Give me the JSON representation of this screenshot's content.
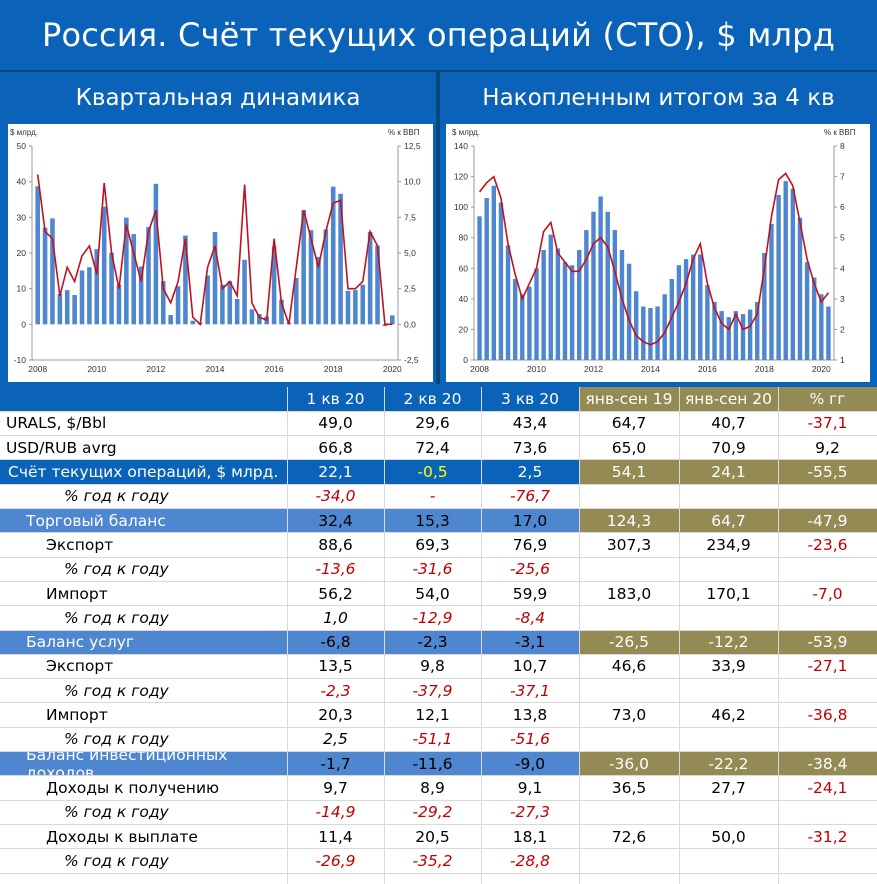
{
  "page": {
    "title": "Россия. Счёт текущих операций (СТО), $ млрд",
    "left_subtitle": "Квартальная динамика",
    "right_subtitle": "Накопленным итогом за 4 кв"
  },
  "colors": {
    "bar": "#4f86d0",
    "line": "#c0111f",
    "header_blue": "#0a63b8",
    "olive": "#948a54",
    "section_blue": "#4f86d0"
  },
  "chart_data": [
    {
      "type": "bar",
      "left_unit": "$ млрд.",
      "right_unit": "% к ВВП",
      "y_ticks": [
        "50",
        "40",
        "30",
        "20",
        "10",
        "0",
        "-10"
      ],
      "y2_ticks": [
        "12,5",
        "10,0",
        "7,5",
        "5,0",
        "2,5",
        "0,0",
        "-2,5"
      ],
      "x_ticks": [
        "2008",
        "2010",
        "2012",
        "2014",
        "2016",
        "2018",
        "2020"
      ],
      "ylim": [
        -10,
        50
      ],
      "y2lim": [
        -2.5,
        12.5
      ],
      "series": [
        {
          "values": [
            38.7,
            27.1,
            29.7,
            8.5,
            9.6,
            8.2,
            15.1,
            16.0,
            21.1,
            33.0,
            20.1,
            11.1,
            29.9,
            25.3,
            16.2,
            27.3,
            39.4,
            12.1,
            2.6,
            10.7,
            24.9,
            1.0,
            0.5,
            13.7,
            25.9,
            11.0,
            12.1,
            7.1,
            18.1,
            4.2,
            2.9,
            2.2,
            21.8,
            6.9,
            0.5,
            13.0,
            32.0,
            26.4,
            18.9,
            26.6,
            38.6,
            36.6,
            9.4,
            9.6,
            11.1,
            25.9,
            22.1,
            -0.5,
            2.5
          ]
        },
        {
          "values": [
            10.5,
            6.5,
            6.0,
            2.0,
            4.0,
            3.0,
            4.8,
            5.5,
            3.5,
            9.9,
            5.0,
            2.5,
            7.0,
            5.0,
            3.0,
            6.5,
            8.0,
            2.5,
            1.5,
            3.0,
            6.0,
            0.5,
            0.0,
            4.0,
            5.5,
            2.5,
            3.0,
            2.0,
            9.8,
            1.5,
            0.5,
            0.3,
            6.0,
            1.5,
            0.0,
            4.0,
            8.0,
            6.0,
            4.0,
            6.5,
            8.5,
            8.7,
            2.5,
            2.5,
            3.0,
            6.5,
            5.5,
            0.0,
            0.0
          ]
        }
      ]
    },
    {
      "type": "bar",
      "left_unit": "$ млрд.",
      "right_unit": "% к ВВП",
      "y_ticks": [
        "140",
        "120",
        "100",
        "80",
        "60",
        "40",
        "20",
        "0"
      ],
      "y2_ticks": [
        "8",
        "7",
        "6",
        "5",
        "4",
        "3",
        "2",
        "1"
      ],
      "x_ticks": [
        "2008",
        "2010",
        "2012",
        "2014",
        "2016",
        "2018",
        "2020"
      ],
      "ylim": [
        0,
        140
      ],
      "y2lim": [
        1,
        8
      ],
      "series": [
        {
          "values": [
            94,
            106,
            114,
            103,
            75,
            53,
            43,
            48,
            60,
            72,
            82,
            73,
            64,
            62,
            72,
            85,
            97,
            107,
            97,
            85,
            72,
            63,
            45,
            35,
            34,
            35,
            43,
            53,
            62,
            66,
            69,
            69,
            49,
            38,
            32,
            28,
            32,
            30,
            33,
            38,
            70,
            89,
            108,
            117,
            112,
            93,
            64,
            54,
            43,
            35
          ]
        },
        {
          "values": [
            6.5,
            6.8,
            7.0,
            6.3,
            4.8,
            3.8,
            3.0,
            3.5,
            4.0,
            5.2,
            5.5,
            4.5,
            4.2,
            3.9,
            3.9,
            4.3,
            4.8,
            5.0,
            4.7,
            3.9,
            3.0,
            2.3,
            1.8,
            1.6,
            1.5,
            1.6,
            1.9,
            2.4,
            2.9,
            3.5,
            4.3,
            4.8,
            3.5,
            2.7,
            2.2,
            2.0,
            2.5,
            2.0,
            2.1,
            2.5,
            4.0,
            5.7,
            6.9,
            7.1,
            6.7,
            5.5,
            4.3,
            3.5,
            2.9,
            3.2
          ]
        }
      ]
    }
  ],
  "table": {
    "headers": [
      "1 кв 20",
      "2 кв 20",
      "3 кв 20",
      "янв-сен 19",
      "янв-сен 20",
      "% гг"
    ],
    "rows": [
      {
        "label": "URALS, $/Bbl",
        "vals": [
          "49,0",
          "29,6",
          "43,4",
          "64,7",
          "40,7",
          "-37,1"
        ]
      },
      {
        "label": "USD/RUB avrg",
        "vals": [
          "66,8",
          "72,4",
          "73,6",
          "65,0",
          "70,9",
          "9,2"
        ]
      },
      {
        "label": "Счёт текущих операций, $ млрд.",
        "vals": [
          "22,1",
          "-0,5",
          "2,5",
          "54,1",
          "24,1",
          "-55,5"
        ]
      },
      {
        "label": "% год к году",
        "vals": [
          "-34,0",
          "-",
          "-76,7",
          "",
          "",
          ""
        ]
      },
      {
        "label": "Торговый баланс",
        "vals": [
          "32,4",
          "15,3",
          "17,0",
          "124,3",
          "64,7",
          "-47,9"
        ]
      },
      {
        "label": "Экспорт",
        "vals": [
          "88,6",
          "69,3",
          "76,9",
          "307,3",
          "234,9",
          "-23,6"
        ]
      },
      {
        "label": "% год к году",
        "vals": [
          "-13,6",
          "-31,6",
          "-25,6",
          "",
          "",
          ""
        ]
      },
      {
        "label": "Импорт",
        "vals": [
          "56,2",
          "54,0",
          "59,9",
          "183,0",
          "170,1",
          "-7,0"
        ]
      },
      {
        "label": "% год к году",
        "vals": [
          "1,0",
          "-12,9",
          "-8,4",
          "",
          "",
          ""
        ]
      },
      {
        "label": "Баланс услуг",
        "vals": [
          "-6,8",
          "-2,3",
          "-3,1",
          "-26,5",
          "-12,2",
          "-53,9"
        ]
      },
      {
        "label": "Экспорт",
        "vals": [
          "13,5",
          "9,8",
          "10,7",
          "46,6",
          "33,9",
          "-27,1"
        ]
      },
      {
        "label": "% год к году",
        "vals": [
          "-2,3",
          "-37,9",
          "-37,1",
          "",
          "",
          ""
        ]
      },
      {
        "label": "Импорт",
        "vals": [
          "20,3",
          "12,1",
          "13,8",
          "73,0",
          "46,2",
          "-36,8"
        ]
      },
      {
        "label": "% год к году",
        "vals": [
          "2,5",
          "-51,1",
          "-51,6",
          "",
          "",
          ""
        ]
      },
      {
        "label": "Баланс инвестиционных доходов",
        "vals": [
          "-1,7",
          "-11,6",
          "-9,0",
          "-36,0",
          "-22,2",
          "-38,4"
        ]
      },
      {
        "label": "Доходы к получению",
        "vals": [
          "9,7",
          "8,9",
          "9,1",
          "36,5",
          "27,7",
          "-24,1"
        ]
      },
      {
        "label": "% год к году",
        "vals": [
          "-14,9",
          "-29,2",
          "-27,3",
          "",
          "",
          ""
        ]
      },
      {
        "label": "Доходы к выплате",
        "vals": [
          "11,4",
          "20,5",
          "18,1",
          "72,6",
          "50,0",
          "-31,2"
        ]
      },
      {
        "label": "% год к году",
        "vals": [
          "-26,9",
          "-35,2",
          "-28,8",
          "",
          "",
          ""
        ]
      }
    ]
  }
}
